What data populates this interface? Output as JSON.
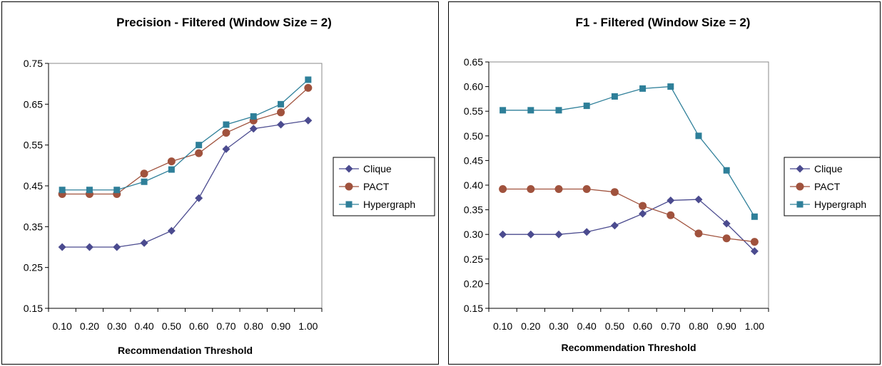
{
  "chart_data": [
    {
      "type": "line",
      "title": "Precision - Filtered (Window Size = 2)",
      "xlabel": "Recommendation Threshold",
      "ylabel": "",
      "categories": [
        "0.10",
        "0.20",
        "0.30",
        "0.40",
        "0.50",
        "0.60",
        "0.70",
        "0.80",
        "0.90",
        "1.00"
      ],
      "ylim": [
        0.15,
        0.75
      ],
      "yticks": [
        "0.15",
        "0.25",
        "0.35",
        "0.45",
        "0.55",
        "0.65",
        "0.75"
      ],
      "grid": false,
      "legend_position": "right",
      "series": [
        {
          "name": "Clique",
          "marker": "diamond",
          "color": "#4b4b8f",
          "values": [
            0.3,
            0.3,
            0.3,
            0.31,
            0.34,
            0.42,
            0.54,
            0.59,
            0.6,
            0.61
          ]
        },
        {
          "name": "PACT",
          "marker": "circle",
          "color": "#a0523d",
          "values": [
            0.43,
            0.43,
            0.43,
            0.48,
            0.51,
            0.53,
            0.58,
            0.61,
            0.63,
            0.69
          ]
        },
        {
          "name": "Hypergraph",
          "marker": "square",
          "color": "#2e7f99",
          "values": [
            0.44,
            0.44,
            0.44,
            0.46,
            0.49,
            0.55,
            0.6,
            0.62,
            0.65,
            0.71
          ]
        }
      ]
    },
    {
      "type": "line",
      "title": "F1 - Filtered (Window Size = 2)",
      "xlabel": "Recommendation Threshold",
      "ylabel": "",
      "categories": [
        "0.10",
        "0.20",
        "0.30",
        "0.40",
        "0.50",
        "0.60",
        "0.70",
        "0.80",
        "0.90",
        "1.00"
      ],
      "ylim": [
        0.15,
        0.65
      ],
      "yticks": [
        "0.15",
        "0.20",
        "0.25",
        "0.30",
        "0.35",
        "0.40",
        "0.45",
        "0.50",
        "0.55",
        "0.60",
        "0.65"
      ],
      "grid": false,
      "legend_position": "right",
      "series": [
        {
          "name": "Clique",
          "marker": "diamond",
          "color": "#4b4b8f",
          "values": [
            0.3,
            0.3,
            0.3,
            0.305,
            0.318,
            0.342,
            0.369,
            0.371,
            0.322,
            0.266
          ]
        },
        {
          "name": "PACT",
          "marker": "circle",
          "color": "#a0523d",
          "values": [
            0.392,
            0.392,
            0.392,
            0.392,
            0.386,
            0.358,
            0.339,
            0.302,
            0.292,
            0.285
          ]
        },
        {
          "name": "Hypergraph",
          "marker": "square",
          "color": "#2e7f99",
          "values": [
            0.552,
            0.552,
            0.552,
            0.561,
            0.58,
            0.596,
            0.6,
            0.5,
            0.43,
            0.336
          ]
        }
      ]
    }
  ]
}
